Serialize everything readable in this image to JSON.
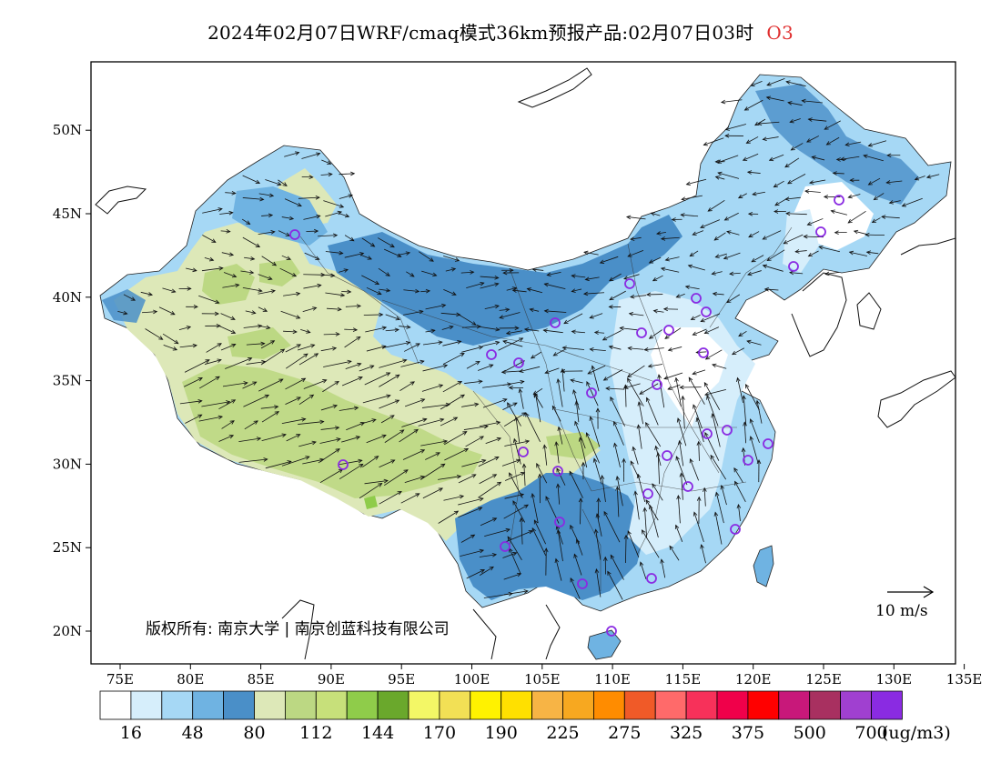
{
  "title": {
    "main": "2024年02月07日WRF/cmaq模式36km预报产品:02月07日03时",
    "species": "O3",
    "species_color": "#e03030"
  },
  "map": {
    "lon_range": [
      73,
      135
    ],
    "lat_range": [
      18,
      54
    ],
    "lon_ticks": [
      "75E",
      "80E",
      "85E",
      "90E",
      "95E",
      "100E",
      "105E",
      "110E",
      "115E",
      "120E",
      "125E",
      "130E",
      "135E"
    ],
    "lat_ticks": [
      "20N",
      "25N",
      "30N",
      "35N",
      "40N",
      "45N",
      "50N"
    ],
    "copyright": "版权所有: 南京大学 | 南京创蓝科技有限公司",
    "vector_scale_label": "10 m/s",
    "station_marker_color": "#8a2be2",
    "background": "#ffffff"
  },
  "legend": {
    "colors": [
      "#ffffff",
      "#d6eefb",
      "#a6d8f5",
      "#6fb3e2",
      "#4a8fc8",
      "#dde8b8",
      "#bcd883",
      "#c7e07a",
      "#8fcc4a",
      "#6aa82c",
      "#f3f766",
      "#f2e055",
      "#fff200",
      "#ffe000",
      "#f7b445",
      "#f7a820",
      "#ff8c00",
      "#f05a28",
      "#ff6a6a",
      "#f7315a",
      "#f0004a",
      "#ff0000",
      "#c8187a",
      "#a83060",
      "#a040d0",
      "#8a2be2"
    ],
    "labels": [
      "16",
      "48",
      "80",
      "112",
      "144",
      "170",
      "190",
      "225",
      "275",
      "325",
      "375",
      "500",
      "700"
    ],
    "unit": "(ug/m3)"
  }
}
